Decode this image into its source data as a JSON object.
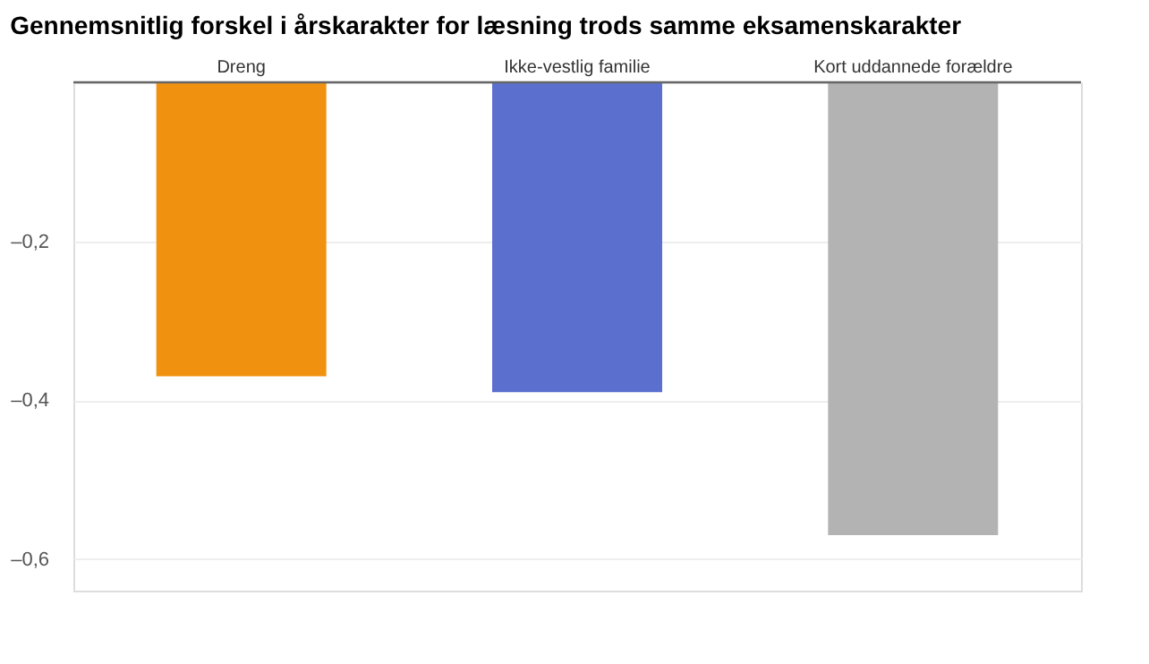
{
  "chart_data": {
    "type": "bar",
    "title": "Gennemsnitlig forskel i årskarakter for læsning trods samme eksamenskarakter",
    "categories": [
      "Dreng",
      "Ikke-vestlig familie",
      "Kort uddannede forældre"
    ],
    "values": [
      -0.37,
      -0.39,
      -0.57
    ],
    "colors": [
      "#f0920f",
      "#5b6fcf",
      "#b3b3b3"
    ],
    "ylim": [
      -0.64,
      0
    ],
    "yticks": [
      {
        "value": -0.6,
        "label": "–0,6"
      },
      {
        "value": -0.4,
        "label": "–0,4"
      },
      {
        "value": -0.2,
        "label": "–0,2"
      },
      {
        "value": 0,
        "label": null
      }
    ],
    "grid": "y"
  }
}
